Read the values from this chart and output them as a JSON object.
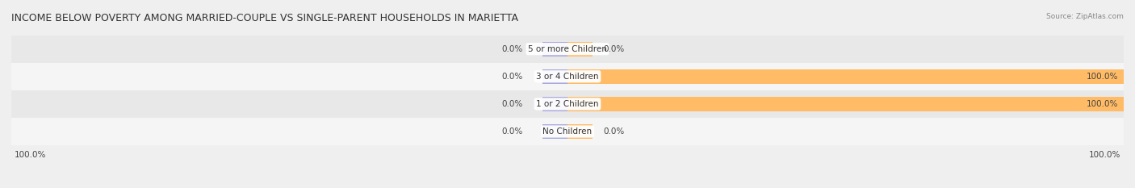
{
  "title": "INCOME BELOW POVERTY AMONG MARRIED-COUPLE VS SINGLE-PARENT HOUSEHOLDS IN MARIETTA",
  "source_text": "Source: ZipAtlas.com",
  "categories": [
    "No Children",
    "1 or 2 Children",
    "3 or 4 Children",
    "5 or more Children"
  ],
  "married_values": [
    0.0,
    0.0,
    0.0,
    0.0
  ],
  "single_values": [
    0.0,
    100.0,
    100.0,
    0.0
  ],
  "married_color": "#aaaadd",
  "single_color": "#ffbb66",
  "bar_height": 0.52,
  "xlim": 100.0,
  "background_color": "#efefef",
  "title_fontsize": 9.0,
  "label_fontsize": 7.5,
  "category_fontsize": 7.5,
  "legend_fontsize": 7.5,
  "axis_label_left": "100.0%",
  "axis_label_right": "100.0%",
  "row_colors": [
    "#f5f5f5",
    "#e8e8e8",
    "#f5f5f5",
    "#e8e8e8"
  ]
}
